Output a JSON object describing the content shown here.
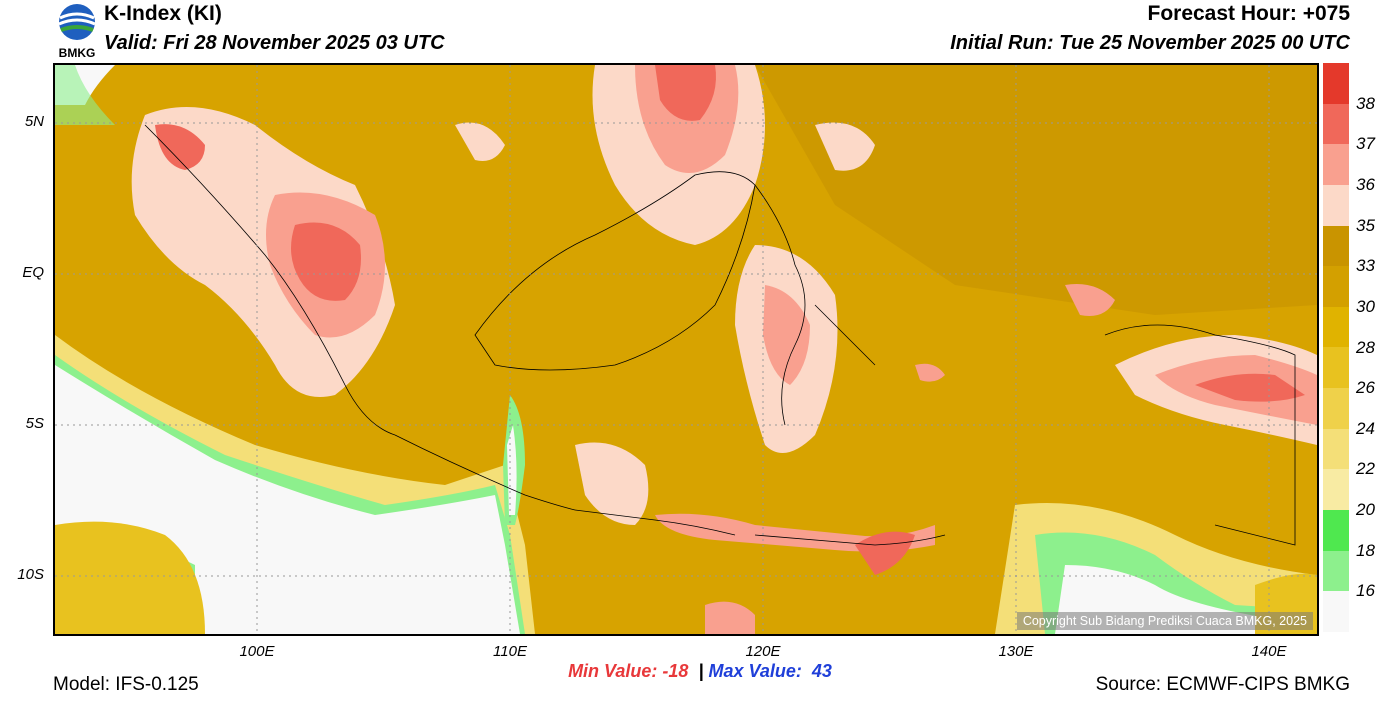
{
  "header": {
    "title": "K-Index (KI)",
    "valid": "Valid: Fri 28 November 2025 03 UTC",
    "forecast_hour": "Forecast Hour: +075",
    "initial_run": "Initial Run: Tue 25 November 2025 00 UTC",
    "logo_text": "BMKG"
  },
  "axes": {
    "lat_labels": [
      "5N",
      "EQ",
      "5S",
      "10S"
    ],
    "lon_labels": [
      "100E",
      "110E",
      "120E",
      "130E",
      "140E"
    ]
  },
  "stats": {
    "min_label": "Min Value:",
    "min_value": "-18",
    "separator": "|",
    "max_label": "Max Value:",
    "max_value": "43"
  },
  "footer": {
    "model": "Model: IFS-0.125",
    "source": "Source: ECMWF-CIPS BMKG"
  },
  "copyright": "Copyright Sub Bidang Prediksi Cuaca BMKG, 2025",
  "legend": {
    "colors": [
      "#e4392b",
      "#f0685a",
      "#f9a08f",
      "#fcd9c8",
      "#c99400",
      "#d3a000",
      "#e0b300",
      "#e8c21f",
      "#efd14a",
      "#f4df78",
      "#f8eba3",
      "#4fe84f",
      "#8df08d",
      "#f8f8f8"
    ],
    "labels": [
      "38",
      "37",
      "36",
      "35",
      "33",
      "30",
      "28",
      "26",
      "24",
      "22",
      "20",
      "18",
      "16"
    ]
  },
  "map_colors": {
    "base": "#d7a300",
    "dark": "#c99400",
    "yellow": "#e8c21f",
    "light_yellow": "#f4df78",
    "green": "#8df08d",
    "white": "#f8f8f8",
    "pink": "#fcd9c8",
    "salmon": "#f9a08f",
    "red": "#e4392b"
  }
}
